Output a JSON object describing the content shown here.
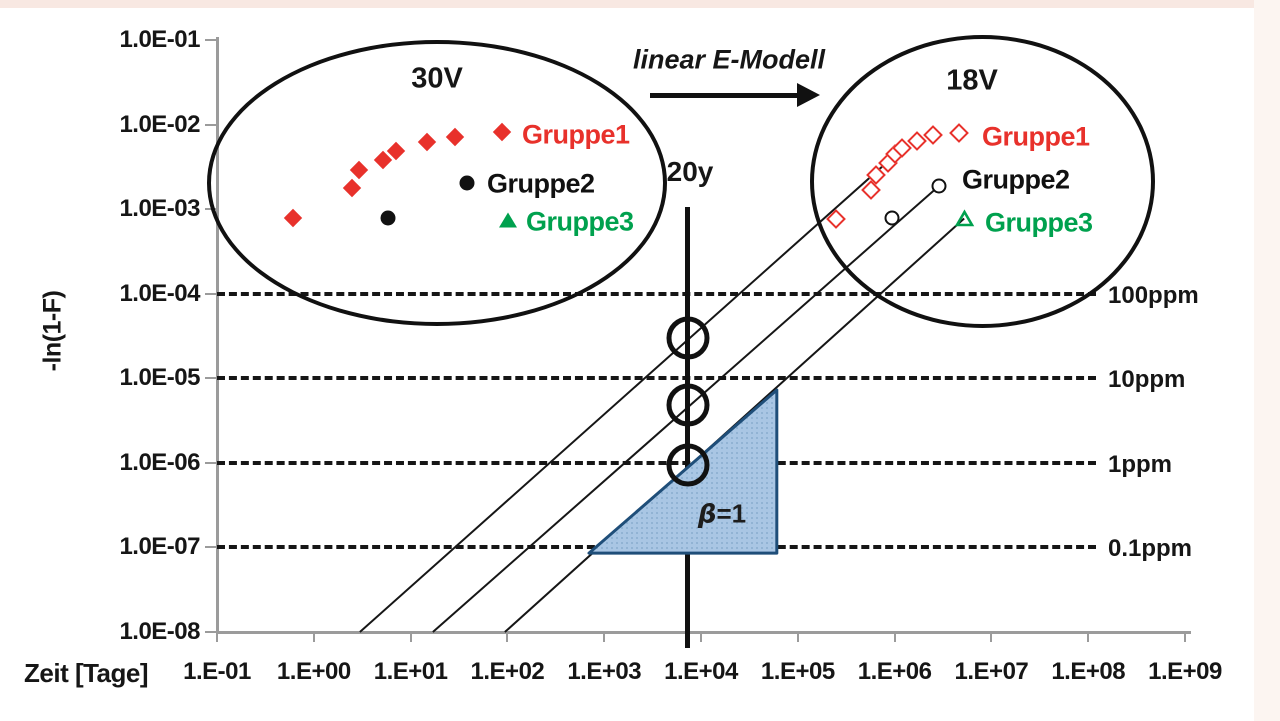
{
  "frame": {
    "top_strip_color": "#F8E8E2",
    "right_strip_color": "#FCF5F1"
  },
  "colors": {
    "red": "#E8312B",
    "black": "#111111",
    "green": "#00A14E",
    "triangle_fill": "#A9C6E4",
    "triangle_dot": "#7FA6C9",
    "triangle_border": "#1F4E79",
    "axis_gray": "#9b9b9b",
    "ink": "#161616"
  },
  "chart_data": {
    "type": "scatter",
    "xlabel": "Zeit [Tage]",
    "ylabel": "-ln(1-F)",
    "x_scale": "log",
    "y_scale": "log",
    "xlim": [
      0.1,
      1000000000.0
    ],
    "ylim": [
      1e-08,
      0.1
    ],
    "x_tick_labels": [
      "1.E-01",
      "1.E+00",
      "1.E+01",
      "1.E+02",
      "1.E+03",
      "1.E+04",
      "1.E+05",
      "1.E+06",
      "1.E+07",
      "1.E+08",
      "1.E+09"
    ],
    "y_tick_labels": [
      "1.0E-01",
      "1.0E-02",
      "1.0E-03",
      "1.0E-04",
      "1.0E-05",
      "1.0E-06",
      "1.0E-07",
      "1.0E-08"
    ],
    "grid": "off",
    "series": [
      {
        "name": "Gruppe1",
        "cluster": "30V",
        "marker": "diamond-filled",
        "color": "#E8312B",
        "points": [
          [
            0.61,
            0.00079
          ],
          [
            2.5,
            0.0018
          ],
          [
            2.9,
            0.0029
          ],
          [
            5.2,
            0.0038
          ],
          [
            7.1,
            0.0049
          ],
          [
            14.8,
            0.0062
          ],
          [
            28.8,
            0.0071
          ]
        ]
      },
      {
        "name": "Gruppe2",
        "cluster": "30V",
        "marker": "circle-filled",
        "color": "#111111",
        "points": [
          [
            5.8,
            0.00079
          ]
        ]
      },
      {
        "name": "Gruppe1",
        "cluster": "18V",
        "marker": "diamond-hollow",
        "color": "#E8312B",
        "points": [
          [
            250000.0,
            0.00076
          ],
          [
            570000.0,
            0.0017
          ],
          [
            640000.0,
            0.0025
          ],
          [
            860000.0,
            0.0035
          ],
          [
            1000000.0,
            0.0045
          ],
          [
            1200000.0,
            0.0053
          ],
          [
            1700000.0,
            0.0064
          ],
          [
            2500000.0,
            0.0076
          ]
        ]
      },
      {
        "name": "Gruppe2",
        "cluster": "18V",
        "marker": "circle-hollow",
        "color": "#111111",
        "points": [
          [
            940000.0,
            0.00079
          ],
          [
            2900000.0,
            0.0019
          ]
        ]
      },
      {
        "name": "Gruppe3",
        "cluster": "18V",
        "marker": "triangle-hollow",
        "color": "#00A14E",
        "points": [
          [
            5300000.0,
            0.00078
          ]
        ]
      }
    ],
    "model_lines": [
      {
        "from": [
          3,
          1e-08
        ],
        "to": [
          1250000.0,
          0.0054
        ]
      },
      {
        "from": [
          17,
          1e-08
        ],
        "to": [
          2900000.0,
          0.0019
        ]
      },
      {
        "from": [
          95,
          1e-08
        ],
        "to": [
          5300000.0,
          0.00078
        ]
      }
    ],
    "reference_lines": [
      {
        "y": 0.0001,
        "label": "100ppm"
      },
      {
        "y": 1e-05,
        "label": "10ppm"
      },
      {
        "y": 1e-06,
        "label": "1ppm"
      },
      {
        "y": 1e-07,
        "label": "0.1ppm"
      }
    ],
    "vertical_marker": {
      "x": 7300,
      "label": "20y",
      "circle_y": [
        3e-05,
        4.8e-06,
        9.4e-07
      ]
    },
    "slope_triangle": {
      "x1": 700,
      "x2": 61000.0,
      "y1": 8.6e-08,
      "y2": 7.3e-06,
      "label_beta": "β",
      "label_value": "=1"
    }
  },
  "annotations": {
    "model_label": "linear E-Modell",
    "ellipse_30v_label": "30V",
    "ellipse_18v_label": "18V",
    "time_marker_label": "20y"
  },
  "legend_30V": {
    "items": [
      {
        "label": "Gruppe1",
        "marker": "diamond-filled",
        "color": "#E8312B"
      },
      {
        "label": "Gruppe2",
        "marker": "circle-filled",
        "color": "#111111"
      },
      {
        "label": "Gruppe3",
        "marker": "triangle-filled",
        "color": "#00A14E"
      }
    ]
  },
  "legend_18V": {
    "items": [
      {
        "label": "Gruppe1",
        "marker": "diamond-hollow",
        "color": "#E8312B"
      },
      {
        "label": "Gruppe2",
        "marker": "none",
        "color": "#111111"
      },
      {
        "label": "Gruppe3",
        "marker": "none",
        "color": "#00A14E"
      }
    ]
  }
}
